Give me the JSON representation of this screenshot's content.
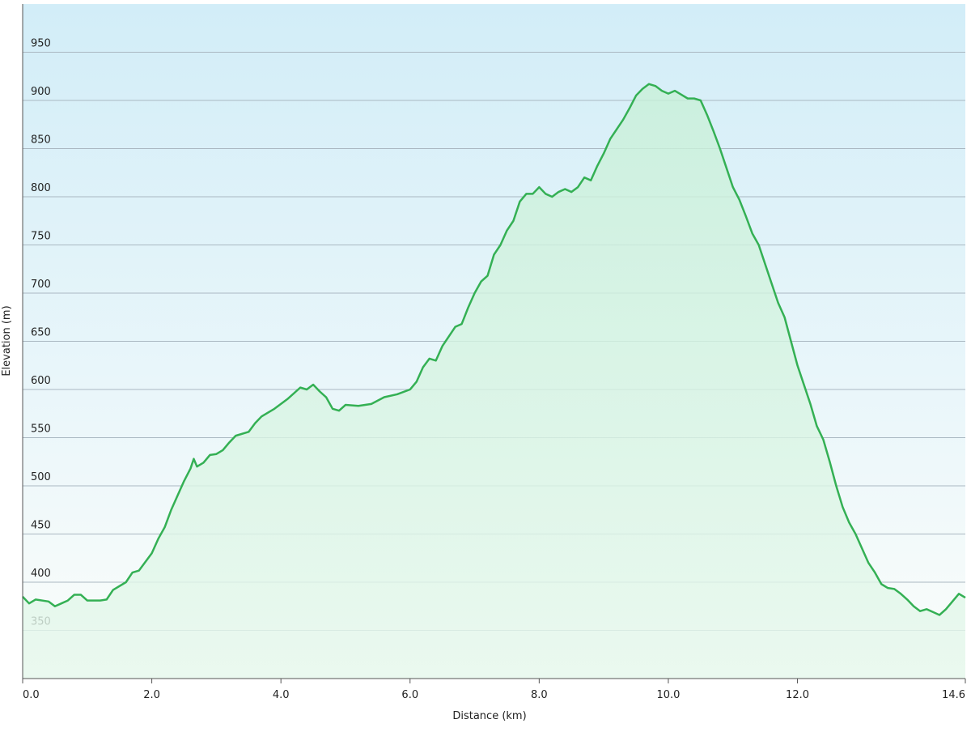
{
  "chart_data": {
    "type": "area",
    "x_label": "Distance  (km)",
    "y_label": "Elevation (m)",
    "xlim": [
      0,
      14.6
    ],
    "ylim": [
      300,
      1000
    ],
    "xticks": [
      {
        "value": 0,
        "label": "0.0"
      },
      {
        "value": 2,
        "label": "2.0"
      },
      {
        "value": 4,
        "label": "4.0"
      },
      {
        "value": 6,
        "label": "6.0"
      },
      {
        "value": 8,
        "label": "8.0"
      },
      {
        "value": 10,
        "label": "10.0"
      },
      {
        "value": 12,
        "label": "12.0"
      },
      14.6
    ],
    "yticks": [
      350,
      400,
      450,
      500,
      550,
      600,
      650,
      700,
      750,
      800,
      850,
      900,
      950
    ],
    "grid": true,
    "series": [
      {
        "color": "#34b054",
        "x": [
          0,
          0.1,
          0.2,
          0.4,
          0.5,
          0.6,
          0.7,
          0.8,
          0.9,
          1.0,
          1.2,
          1.3,
          1.4,
          1.6,
          1.7,
          1.8,
          2.0,
          2.1,
          2.2,
          2.3,
          2.4,
          2.5,
          2.6,
          2.65,
          2.7,
          2.8,
          2.9,
          3.0,
          3.1,
          3.2,
          3.3,
          3.5,
          3.6,
          3.7,
          3.9,
          4.1,
          4.3,
          4.4,
          4.5,
          4.6,
          4.7,
          4.8,
          4.9,
          5.0,
          5.2,
          5.4,
          5.6,
          5.8,
          6.0,
          6.1,
          6.2,
          6.3,
          6.4,
          6.5,
          6.6,
          6.7,
          6.8,
          6.9,
          7.0,
          7.1,
          7.2,
          7.3,
          7.4,
          7.5,
          7.6,
          7.7,
          7.8,
          7.9,
          8.0,
          8.1,
          8.2,
          8.3,
          8.4,
          8.5,
          8.6,
          8.7,
          8.8,
          8.9,
          9.0,
          9.1,
          9.2,
          9.3,
          9.4,
          9.5,
          9.6,
          9.7,
          9.8,
          9.9,
          10.0,
          10.1,
          10.2,
          10.3,
          10.4,
          10.5,
          10.6,
          10.7,
          10.8,
          10.9,
          11.0,
          11.1,
          11.2,
          11.3,
          11.4,
          11.5,
          11.6,
          11.7,
          11.8,
          11.9,
          12.0,
          12.1,
          12.2,
          12.3,
          12.4,
          12.5,
          12.6,
          12.7,
          12.8,
          12.9,
          13.0,
          13.1,
          13.2,
          13.3,
          13.4,
          13.5,
          13.6,
          13.7,
          13.8,
          13.9,
          14.0,
          14.1,
          14.2,
          14.3,
          14.4,
          14.5,
          14.6
        ],
        "values": [
          385,
          378,
          382,
          380,
          375,
          378,
          381,
          387,
          387,
          381,
          381,
          382,
          392,
          400,
          410,
          412,
          430,
          445,
          457,
          475,
          490,
          505,
          518,
          528,
          520,
          524,
          532,
          533,
          537,
          545,
          552,
          556,
          565,
          572,
          580,
          590,
          602,
          600,
          605,
          598,
          592,
          580,
          578,
          584,
          583,
          585,
          592,
          595,
          600,
          608,
          623,
          632,
          630,
          645,
          655,
          665,
          668,
          685,
          700,
          712,
          718,
          740,
          750,
          765,
          775,
          795,
          803,
          803,
          810,
          803,
          800,
          805,
          808,
          805,
          810,
          820,
          817,
          832,
          845,
          860,
          870,
          880,
          892,
          905,
          912,
          917,
          915,
          910,
          907,
          910,
          906,
          902,
          902,
          900,
          885,
          868,
          850,
          830,
          810,
          797,
          780,
          762,
          750,
          730,
          710,
          690,
          675,
          650,
          625,
          605,
          585,
          562,
          548,
          525,
          500,
          478,
          462,
          450,
          435,
          420,
          410,
          398,
          394,
          393,
          388,
          382,
          375,
          370,
          372,
          369,
          366,
          372,
          380,
          388,
          384
        ]
      }
    ]
  }
}
